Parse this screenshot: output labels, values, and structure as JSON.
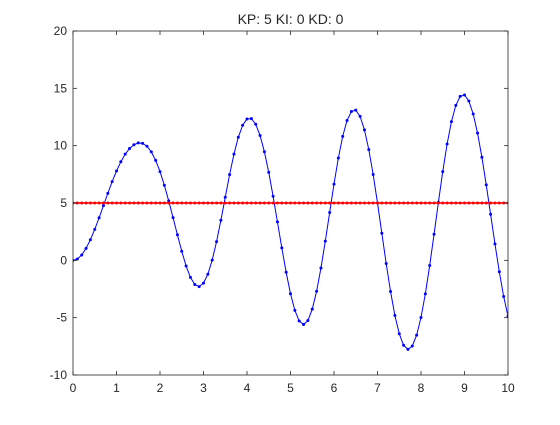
{
  "chart_data": {
    "type": "line",
    "title": "KP: 5 KI: 0 KD: 0",
    "xlabel": "",
    "ylabel": "",
    "xlim": [
      0,
      10
    ],
    "ylim": [
      -10,
      20
    ],
    "xticks": [
      "0",
      "1",
      "2",
      "3",
      "4",
      "5",
      "6",
      "7",
      "8",
      "9",
      "10"
    ],
    "yticks": [
      "-10",
      "-5",
      "0",
      "5",
      "10",
      "15",
      "20"
    ],
    "grid": false,
    "legend": "none",
    "series": [
      {
        "color": "#0000ff",
        "marker": "dot",
        "x": [
          0,
          0.1,
          0.2,
          0.3,
          0.4,
          0.5,
          0.6,
          0.7,
          0.8,
          0.9,
          1.0,
          1.1,
          1.2,
          1.3,
          1.4,
          1.5,
          1.6,
          1.7,
          1.8,
          1.9,
          2.0,
          2.1,
          2.2,
          2.3,
          2.4,
          2.5,
          2.6,
          2.7,
          2.8,
          2.9,
          3.0,
          3.1,
          3.2,
          3.3,
          3.4,
          3.5,
          3.6,
          3.7,
          3.8,
          3.9,
          4.0,
          4.1,
          4.2,
          4.3,
          4.4,
          4.5,
          4.6,
          4.7,
          4.8,
          4.9,
          5.0,
          5.1,
          5.2,
          5.3,
          5.4,
          5.5,
          5.6,
          5.7,
          5.8,
          5.9,
          6.0,
          6.1,
          6.2,
          6.3,
          6.4,
          6.5,
          6.6,
          6.7,
          6.8,
          6.9,
          7.0,
          7.1,
          7.2,
          7.3,
          7.4,
          7.5,
          7.6,
          7.7,
          7.8,
          7.9,
          8.0,
          8.1,
          8.2,
          8.3,
          8.4,
          8.5,
          8.6,
          8.7,
          8.8,
          8.9,
          9.0,
          9.1,
          9.2,
          9.3,
          9.4,
          9.5,
          9.6,
          9.7,
          9.8,
          9.9,
          10.0
        ],
        "y": [
          0,
          0.12,
          0.47,
          1.04,
          1.8,
          2.7,
          3.71,
          4.77,
          5.84,
          6.86,
          7.79,
          8.6,
          9.26,
          9.75,
          10.08,
          10.24,
          10.2,
          9.95,
          9.46,
          8.72,
          7.74,
          6.55,
          5.19,
          3.72,
          2.23,
          0.79,
          -0.49,
          -1.49,
          -2.11,
          -2.29,
          -1.99,
          -1.21,
          0.02,
          1.63,
          3.5,
          5.5,
          7.47,
          9.26,
          10.73,
          11.78,
          12.33,
          12.36,
          11.87,
          10.89,
          9.47,
          7.67,
          5.59,
          3.35,
          1.09,
          -1.04,
          -2.91,
          -4.36,
          -5.29,
          -5.6,
          -5.25,
          -4.26,
          -2.7,
          -0.67,
          1.67,
          4.17,
          6.65,
          8.92,
          10.81,
          12.2,
          12.98,
          13.1,
          12.55,
          11.38,
          9.66,
          7.49,
          5.0,
          2.36,
          -0.28,
          -2.72,
          -4.81,
          -6.4,
          -7.41,
          -7.77,
          -7.47,
          -6.52,
          -4.98,
          -2.92,
          -0.45,
          2.27,
          5.06,
          7.74,
          10.14,
          12.1,
          13.51,
          14.3,
          14.42,
          13.89,
          12.76,
          11.09,
          8.99,
          6.58,
          4.02,
          1.44,
          -1.0,
          -3.15,
          -4.88
        ]
      },
      {
        "color": "#ff0000",
        "marker": "dot",
        "x": [
          0,
          0.1,
          0.2,
          0.3,
          0.4,
          0.5,
          0.6,
          0.7,
          0.8,
          0.9,
          1.0,
          1.1,
          1.2,
          1.3,
          1.4,
          1.5,
          1.6,
          1.7,
          1.8,
          1.9,
          2.0,
          2.1,
          2.2,
          2.3,
          2.4,
          2.5,
          2.6,
          2.7,
          2.8,
          2.9,
          3.0,
          3.1,
          3.2,
          3.3,
          3.4,
          3.5,
          3.6,
          3.7,
          3.8,
          3.9,
          4.0,
          4.1,
          4.2,
          4.3,
          4.4,
          4.5,
          4.6,
          4.7,
          4.8,
          4.9,
          5.0,
          5.1,
          5.2,
          5.3,
          5.4,
          5.5,
          5.6,
          5.7,
          5.8,
          5.9,
          6.0,
          6.1,
          6.2,
          6.3,
          6.4,
          6.5,
          6.6,
          6.7,
          6.8,
          6.9,
          7.0,
          7.1,
          7.2,
          7.3,
          7.4,
          7.5,
          7.6,
          7.7,
          7.8,
          7.9,
          8.0,
          8.1,
          8.2,
          8.3,
          8.4,
          8.5,
          8.6,
          8.7,
          8.8,
          8.9,
          9.0,
          9.1,
          9.2,
          9.3,
          9.4,
          9.5,
          9.6,
          9.7,
          9.8,
          9.9,
          10.0
        ],
        "y": [
          5,
          5,
          5,
          5,
          5,
          5,
          5,
          5,
          5,
          5,
          5,
          5,
          5,
          5,
          5,
          5,
          5,
          5,
          5,
          5,
          5,
          5,
          5,
          5,
          5,
          5,
          5,
          5,
          5,
          5,
          5,
          5,
          5,
          5,
          5,
          5,
          5,
          5,
          5,
          5,
          5,
          5,
          5,
          5,
          5,
          5,
          5,
          5,
          5,
          5,
          5,
          5,
          5,
          5,
          5,
          5,
          5,
          5,
          5,
          5,
          5,
          5,
          5,
          5,
          5,
          5,
          5,
          5,
          5,
          5,
          5,
          5,
          5,
          5,
          5,
          5,
          5,
          5,
          5,
          5,
          5,
          5,
          5,
          5,
          5,
          5,
          5,
          5,
          5,
          5,
          5,
          5,
          5,
          5,
          5,
          5,
          5,
          5,
          5,
          5,
          5
        ]
      }
    ]
  }
}
